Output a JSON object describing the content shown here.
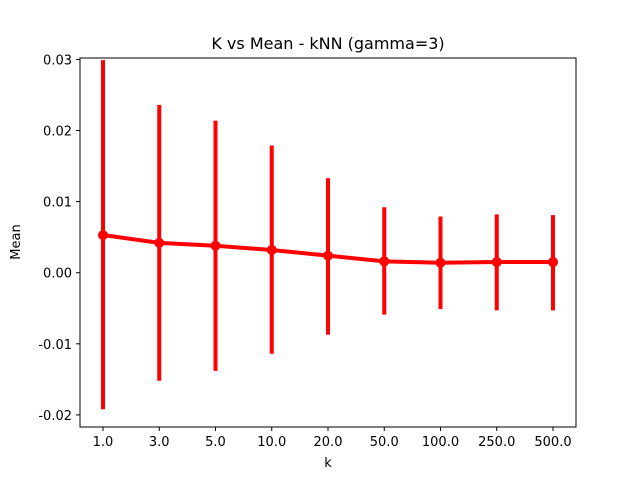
{
  "chart_data": {
    "type": "line",
    "title": "K vs Mean - kNN (gamma=3)",
    "xlabel": "k",
    "ylabel": "Mean",
    "categories": [
      "1.0",
      "3.0",
      "5.0",
      "10.0",
      "20.0",
      "50.0",
      "100.0",
      "250.0",
      "500.0"
    ],
    "series": [
      {
        "values": [
          0.0053,
          0.0042,
          0.0038,
          0.0032,
          0.0024,
          0.0016,
          0.0014,
          0.0015,
          0.0015
        ],
        "err_low": [
          -0.0192,
          -0.0152,
          -0.0138,
          -0.0114,
          -0.0087,
          -0.0059,
          -0.0051,
          -0.0053,
          -0.0053
        ],
        "err_high": [
          0.0299,
          0.0236,
          0.0214,
          0.0179,
          0.0133,
          0.0092,
          0.0079,
          0.0082,
          0.0081
        ]
      }
    ],
    "yticks": [
      "0.03",
      "0.02",
      "0.01",
      "0.00",
      "-0.01",
      "-0.02"
    ],
    "ytick_values": [
      0.03,
      0.02,
      0.01,
      0.0,
      -0.01,
      -0.02
    ],
    "ylim": [
      -0.0217,
      0.0302
    ],
    "grid": false,
    "colors": {
      "series": "#ff0000",
      "axis": "#000000",
      "background": "#ffffff"
    }
  }
}
